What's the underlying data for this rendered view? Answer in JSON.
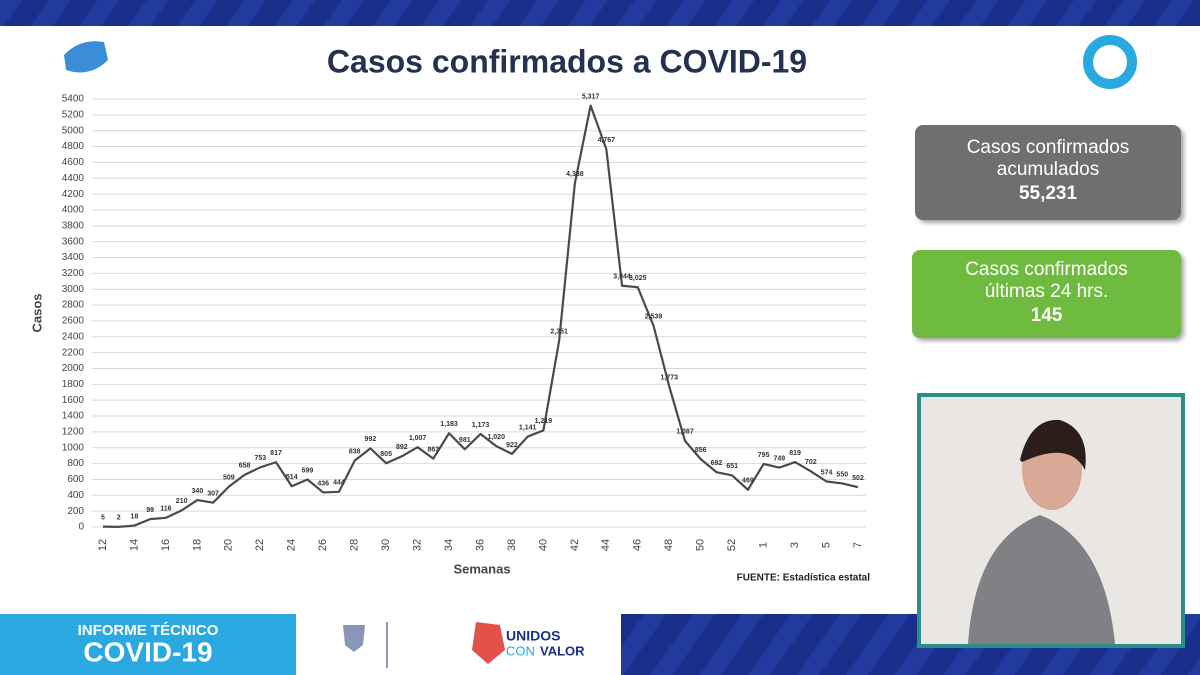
{
  "chart_data": {
    "type": "line",
    "title": "Casos confirmados a COVID-19",
    "y_label": "Casos",
    "x_label": "Semanas",
    "source": "FUENTE: Estadística estatal",
    "categories": [
      "12",
      null,
      "14",
      null,
      "16",
      null,
      "18",
      null,
      "20",
      null,
      "22",
      null,
      "24",
      null,
      "26",
      null,
      "28",
      null,
      "30",
      null,
      "32",
      null,
      "34",
      null,
      "36",
      null,
      "38",
      null,
      "40",
      null,
      "42",
      null,
      "44",
      null,
      "46",
      null,
      "48",
      null,
      "50",
      null,
      "52",
      null,
      "1",
      null,
      "3",
      null,
      "5",
      null,
      "7"
    ],
    "values": [
      5,
      2,
      18,
      99,
      116,
      210,
      340,
      307,
      509,
      658,
      753,
      817,
      514,
      599,
      436,
      444,
      838,
      992,
      805,
      892,
      1007,
      863,
      1183,
      981,
      1173,
      1020,
      922,
      1141,
      1219,
      2351,
      4338,
      5317,
      4767,
      3044,
      3025,
      2539,
      1773,
      1087,
      856,
      692,
      651,
      469,
      795,
      749,
      819,
      702,
      574,
      550,
      502
    ],
    "value_labels": [
      "5",
      "2",
      "18",
      "99",
      "116",
      "210",
      "340",
      "307",
      "509",
      "658",
      "753",
      "817",
      "514",
      "599",
      "436",
      "444",
      "838",
      "992",
      "805",
      "892",
      "1,007",
      "863",
      "1,183",
      "981",
      "1,173",
      "1,020",
      "922",
      "1,141",
      "1,219",
      "2,351",
      "4,338",
      "5,317",
      "4,767",
      "3,044",
      "3,025",
      "2,539",
      "1,773",
      "1,087",
      "856",
      "692",
      "651",
      "469",
      "795",
      "749",
      "819",
      "702",
      "574",
      "550",
      "502"
    ],
    "color": "#4a4a4a",
    "ylim": [
      0,
      5400
    ],
    "yticks": [
      0,
      200,
      400,
      600,
      800,
      1000,
      1200,
      1400,
      1600,
      1800,
      2000,
      2200,
      2400,
      2600,
      2800,
      3000,
      3200,
      3400,
      3600,
      3800,
      4000,
      4200,
      4400,
      4600,
      4800,
      5000,
      5200,
      5400
    ],
    "grid": true
  },
  "stats": [
    {
      "label": "Casos confirmados acumulados",
      "value": "55,231"
    },
    {
      "label": "Casos confirmados últimas 24 hrs.",
      "value": "145"
    }
  ],
  "banner": {
    "line1": "INFORME TÉCNICO",
    "line2": "COVID-19",
    "brand1": "UNIDOS",
    "brand2": "CON",
    "brand3": "VALOR"
  }
}
